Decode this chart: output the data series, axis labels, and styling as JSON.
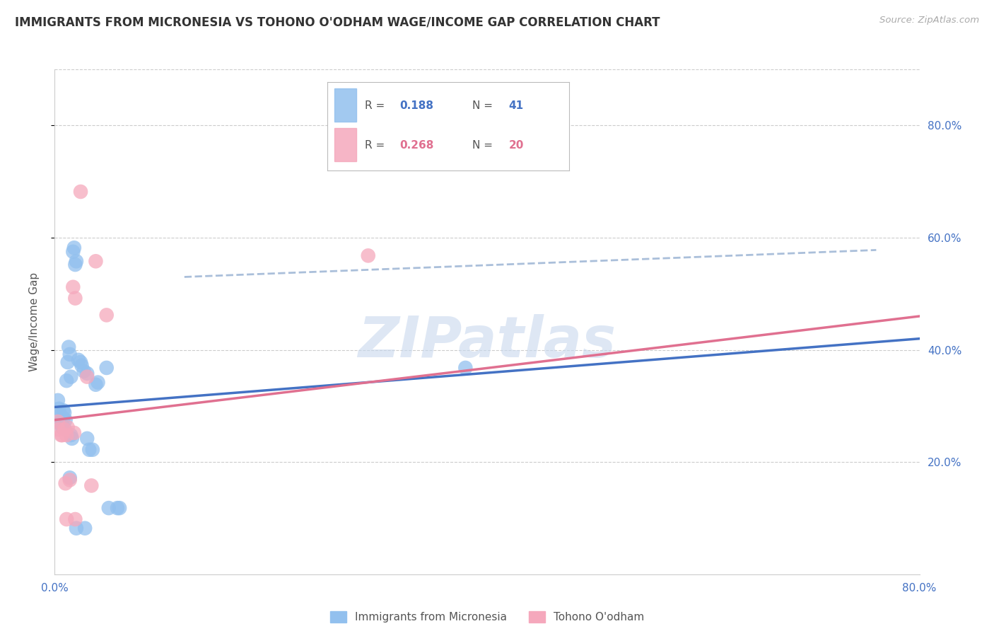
{
  "title": "IMMIGRANTS FROM MICRONESIA VS TOHONO O'ODHAM WAGE/INCOME GAP CORRELATION CHART",
  "source": "Source: ZipAtlas.com",
  "ylabel": "Wage/Income Gap",
  "xlim": [
    0.0,
    0.8
  ],
  "ylim": [
    0.0,
    0.9
  ],
  "xticks": [
    0.0,
    0.2,
    0.4,
    0.6,
    0.8
  ],
  "yticks": [
    0.2,
    0.4,
    0.6,
    0.8
  ],
  "xtick_labels": [
    "0.0%",
    "",
    "",
    "",
    "80.0%"
  ],
  "right_ytick_labels": [
    "20.0%",
    "40.0%",
    "60.0%",
    "80.0%"
  ],
  "blue_color": "#92C0EE",
  "pink_color": "#F5A8BC",
  "blue_line_color": "#4472C4",
  "pink_line_color": "#E07090",
  "dashed_line_color": "#AABFDA",
  "watermark_text": "ZIPatlas",
  "watermark_color": "#C8D8EE",
  "legend_R1": "0.188",
  "legend_N1": "41",
  "legend_R2": "0.268",
  "legend_N2": "20",
  "blue_scatter_x": [
    0.003,
    0.004,
    0.005,
    0.005,
    0.006,
    0.007,
    0.007,
    0.008,
    0.008,
    0.009,
    0.009,
    0.01,
    0.011,
    0.012,
    0.013,
    0.014,
    0.015,
    0.015,
    0.016,
    0.017,
    0.018,
    0.019,
    0.02,
    0.022,
    0.024,
    0.025,
    0.027,
    0.03,
    0.03,
    0.032,
    0.035,
    0.038,
    0.04,
    0.048,
    0.05,
    0.058,
    0.06,
    0.38,
    0.014,
    0.02,
    0.028
  ],
  "blue_scatter_y": [
    0.31,
    0.295,
    0.27,
    0.285,
    0.268,
    0.262,
    0.275,
    0.292,
    0.278,
    0.288,
    0.26,
    0.275,
    0.345,
    0.378,
    0.405,
    0.392,
    0.352,
    0.248,
    0.242,
    0.575,
    0.582,
    0.552,
    0.558,
    0.382,
    0.378,
    0.372,
    0.362,
    0.358,
    0.242,
    0.222,
    0.222,
    0.338,
    0.342,
    0.368,
    0.118,
    0.118,
    0.118,
    0.368,
    0.172,
    0.082,
    0.082
  ],
  "pink_scatter_x": [
    0.003,
    0.004,
    0.006,
    0.007,
    0.009,
    0.01,
    0.011,
    0.012,
    0.014,
    0.017,
    0.018,
    0.019,
    0.024,
    0.03,
    0.038,
    0.048,
    0.29,
    0.019,
    0.011,
    0.034
  ],
  "pink_scatter_y": [
    0.272,
    0.258,
    0.248,
    0.248,
    0.258,
    0.162,
    0.248,
    0.262,
    0.168,
    0.512,
    0.252,
    0.492,
    0.682,
    0.352,
    0.558,
    0.462,
    0.568,
    0.098,
    0.098,
    0.158
  ],
  "blue_trendline_x": [
    0.0,
    0.8
  ],
  "blue_trendline_y": [
    0.298,
    0.42
  ],
  "pink_trendline_x": [
    0.0,
    0.8
  ],
  "pink_trendline_y": [
    0.275,
    0.46
  ],
  "dashed_trendline_x": [
    0.12,
    0.76
  ],
  "dashed_trendline_y": [
    0.53,
    0.578
  ]
}
